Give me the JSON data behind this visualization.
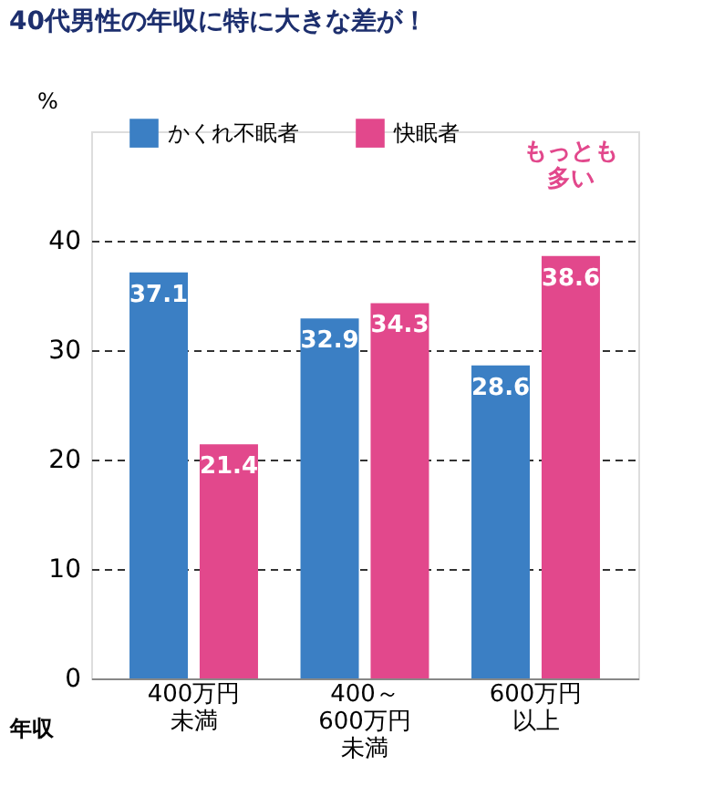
{
  "chart_data": {
    "type": "bar",
    "title": "40代男性の年収に特に大きな差が！",
    "xlabel": "年収",
    "ylabel": "%",
    "categories": [
      "400万円未満",
      "400～600万円未満",
      "600万円以上"
    ],
    "series": [
      {
        "name": "かくれ不眠者",
        "color": "#3b7fc4",
        "values": [
          37.1,
          32.9,
          28.6
        ]
      },
      {
        "name": "快眠者",
        "color": "#e2488c",
        "values": [
          21.4,
          34.3,
          38.6
        ]
      }
    ],
    "ylim": [
      0,
      50
    ],
    "yticks": [
      0,
      10,
      20,
      30,
      40
    ],
    "grid": "y",
    "legend": "top",
    "data_labels": true,
    "annotations": [
      "もっとも多い"
    ]
  }
}
